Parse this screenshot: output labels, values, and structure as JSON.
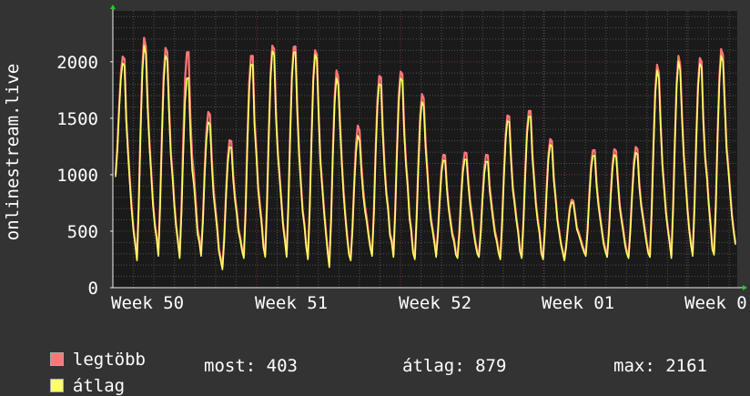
{
  "chart_data": {
    "type": "line",
    "ylabel": "onlinestream.live",
    "y_ticks": [
      0,
      500,
      1000,
      1500,
      2000
    ],
    "ylim": [
      0,
      2450
    ],
    "x_ticks": [
      "Week 50",
      "Week 51",
      "Week 52",
      "Week 01",
      "Week 0"
    ],
    "grid": true,
    "background": "#1a1a1a",
    "day_labels": [
      "",
      "",
      "",
      "",
      "",
      "",
      "",
      "",
      "",
      "",
      "",
      "",
      "",
      "",
      "",
      "",
      "",
      "",
      "",
      "",
      "",
      "",
      "",
      "",
      "",
      "",
      "",
      "",
      "",
      "",
      "",
      "",
      "",
      "",
      "",
      ""
    ],
    "series": [
      {
        "name": "legtöbb",
        "color": "#ff7777",
        "peaks": [
          2050,
          2220,
          2130,
          2090,
          1560,
          1310,
          2060,
          2150,
          2140,
          2110,
          1930,
          1440,
          1880,
          1920,
          1720,
          1180,
          1200,
          1180,
          1530,
          1570,
          1320,
          780,
          1220,
          1230,
          1250,
          1980,
          2060,
          2040,
          2120
        ],
        "troughs": [
          1000,
          260,
          300,
          280,
          300,
          180,
          280,
          290,
          290,
          270,
          200,
          260,
          300,
          290,
          270,
          290,
          280,
          290,
          270,
          280,
          270,
          250,
          300,
          290,
          280,
          290,
          280,
          300,
          310,
          400
        ]
      },
      {
        "name": "átlag",
        "color": "#ffff66",
        "peaks": [
          1990,
          2150,
          2060,
          1860,
          1470,
          1250,
          1980,
          2100,
          2090,
          2070,
          1860,
          1350,
          1810,
          1860,
          1650,
          1130,
          1140,
          1120,
          1480,
          1520,
          1270,
          760,
          1170,
          1180,
          1200,
          1930,
          2010,
          1990,
          2060
        ],
        "troughs": [
          980,
          240,
          280,
          260,
          280,
          160,
          260,
          270,
          270,
          250,
          180,
          240,
          280,
          270,
          250,
          270,
          260,
          270,
          250,
          260,
          250,
          240,
          280,
          270,
          260,
          270,
          260,
          280,
          290,
          380
        ]
      }
    ],
    "legend": [
      {
        "label": "legtöbb",
        "color": "#ff7777"
      },
      {
        "label": "átlag",
        "color": "#ffff66"
      }
    ],
    "stats": {
      "most": "most: 403",
      "atlag": "átlag: 879",
      "max": "max: 2161"
    }
  }
}
